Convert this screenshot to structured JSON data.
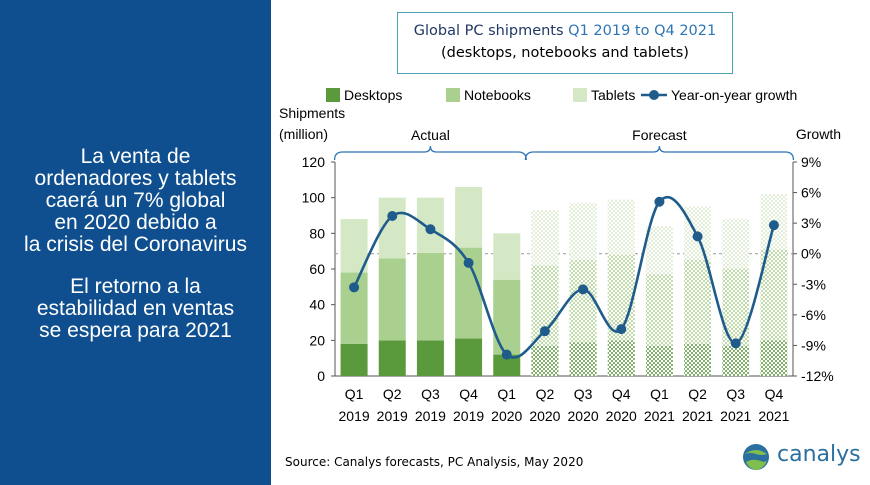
{
  "left_panel": {
    "paragraph1": [
      "La venta de",
      "ordenadores y tablets",
      "caerá un 7% global",
      "en 2020 debido a",
      "la crisis del Coronavirus"
    ],
    "paragraph2": [
      "El retorno a la",
      "estabilidad en ventas",
      "se espera para 2021"
    ]
  },
  "colors": {
    "panel_bg": "#0f4f8f",
    "desktops": "#5a9a3c",
    "notebooks": "#a9d08e",
    "tablets": "#d5e8c5",
    "growth_line": "#1f5c8b"
  },
  "chart_data": {
    "type": "bar",
    "title": "Global PC shipments Q1 2019 to Q4 2021",
    "title_plain": "Global PC shipments",
    "title_highlight": "Q1 2019 to Q4 2021",
    "subtitle": "(desktops, notebooks and tablets)",
    "ylabel": "Shipments",
    "ylabel_unit": "(million)",
    "y2label": "Growth",
    "ylim": [
      0,
      120
    ],
    "y2lim": [
      -12,
      9
    ],
    "yticks": [
      "0",
      "20",
      "40",
      "60",
      "80",
      "100",
      "120"
    ],
    "y2ticks": [
      "-12%",
      "-9%",
      "-6%",
      "-3%",
      "0%",
      "3%",
      "6%",
      "9%"
    ],
    "categories": [
      [
        "Q1",
        "2019"
      ],
      [
        "Q2",
        "2019"
      ],
      [
        "Q3",
        "2019"
      ],
      [
        "Q4",
        "2019"
      ],
      [
        "Q1",
        "2020"
      ],
      [
        "Q2",
        "2020"
      ],
      [
        "Q3",
        "2020"
      ],
      [
        "Q4",
        "2020"
      ],
      [
        "Q1",
        "2021"
      ],
      [
        "Q2",
        "2021"
      ],
      [
        "Q3",
        "2021"
      ],
      [
        "Q4",
        "2021"
      ]
    ],
    "series": [
      {
        "name": "Desktops",
        "values": [
          18,
          20,
          20,
          21,
          12,
          17,
          19,
          20,
          17,
          18,
          17,
          20
        ]
      },
      {
        "name": "Notebooks",
        "values": [
          40,
          46,
          49,
          51,
          42,
          45,
          46,
          48,
          40,
          47,
          43,
          51
        ]
      },
      {
        "name": "Tablets",
        "values": [
          30,
          34,
          31,
          34,
          26,
          31,
          32,
          31,
          27,
          30,
          28,
          31
        ]
      },
      {
        "name": "Year-on-year growth",
        "values": [
          -3.3,
          3.7,
          2.4,
          -0.9,
          -9.9,
          -7.6,
          -3.5,
          -7.4,
          5.1,
          1.7,
          -8.8,
          2.8
        ]
      }
    ],
    "forecast_from_index": 5,
    "brackets": [
      {
        "label": "Actual",
        "from": 0,
        "to": 4
      },
      {
        "label": "Forecast",
        "from": 5,
        "to": 11
      }
    ],
    "legend_position": "top",
    "source": "Source:  Canalys forecasts, PC Analysis, May 2020"
  },
  "logo_text": "canalys"
}
